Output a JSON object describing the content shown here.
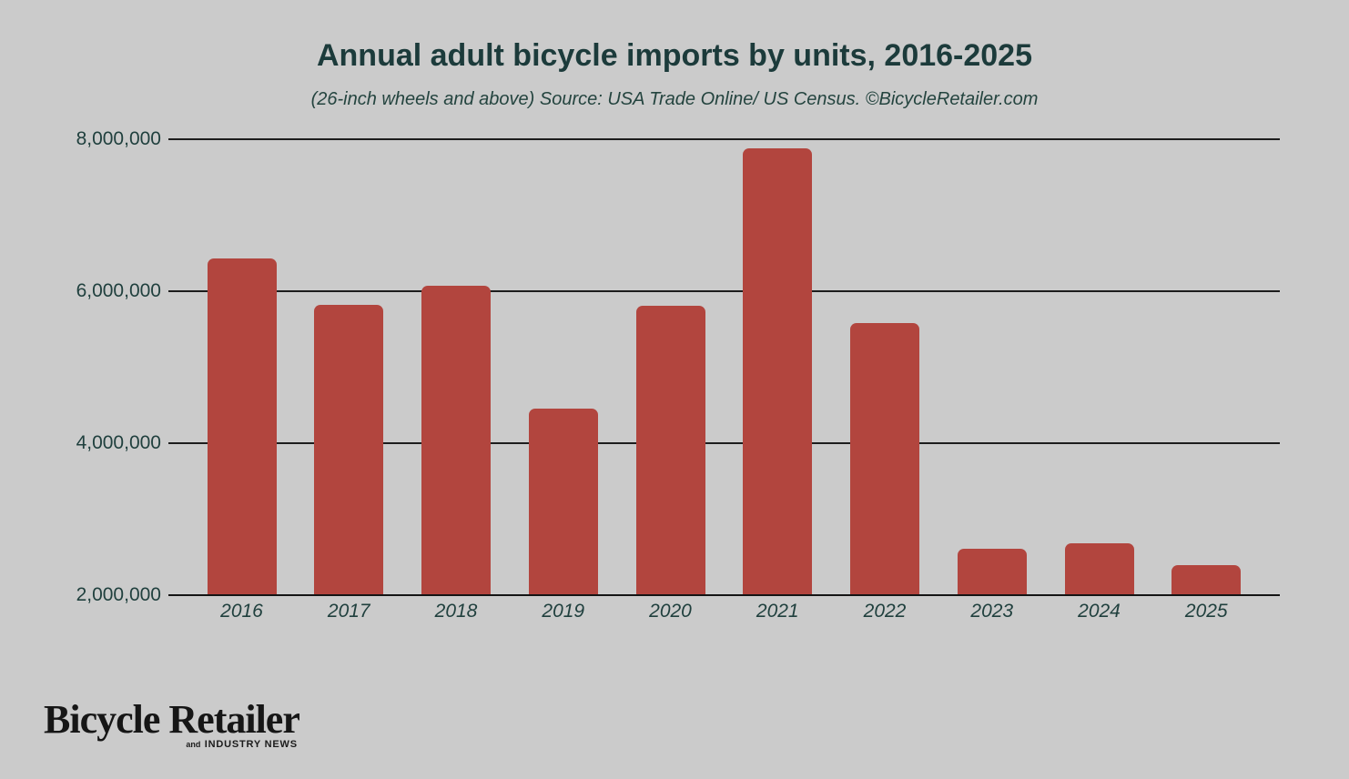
{
  "header": {
    "title": "Annual adult bicycle imports by units, 2016-2025",
    "subtitle": "(26-inch wheels and above) Source: USA Trade Online/ US Census. ©BicycleRetailer.com"
  },
  "chart_data": {
    "type": "bar",
    "title": "Annual adult bicycle imports by units, 2016-2025",
    "subtitle": "(26-inch wheels and above) Source: USA Trade Online/ US Census. ©BicycleRetailer.com",
    "categories": [
      "2016",
      "2017",
      "2018",
      "2019",
      "2020",
      "2021",
      "2022",
      "2023",
      "2024",
      "2025"
    ],
    "values": [
      6430000,
      5820000,
      6070000,
      4450000,
      5800000,
      7870000,
      5580000,
      2610000,
      2680000,
      2390000
    ],
    "xlabel": "",
    "ylabel": "",
    "ylim": [
      2000000,
      8000000
    ],
    "yticks": [
      2000000,
      4000000,
      6000000,
      8000000
    ],
    "ytick_labels": [
      "2,000,000",
      "4,000,000",
      "6,000,000",
      "8,000,000"
    ],
    "grid": true,
    "legend": false,
    "bar_color": "#b2453e",
    "background_color": "#cbcbcb",
    "text_color": "#20403e",
    "gridline_color": "#1d1d1d"
  },
  "branding": {
    "logo_main": "Bicycle Retailer",
    "logo_sub_prefix": "and",
    "logo_sub": "INDUSTRY NEWS"
  }
}
